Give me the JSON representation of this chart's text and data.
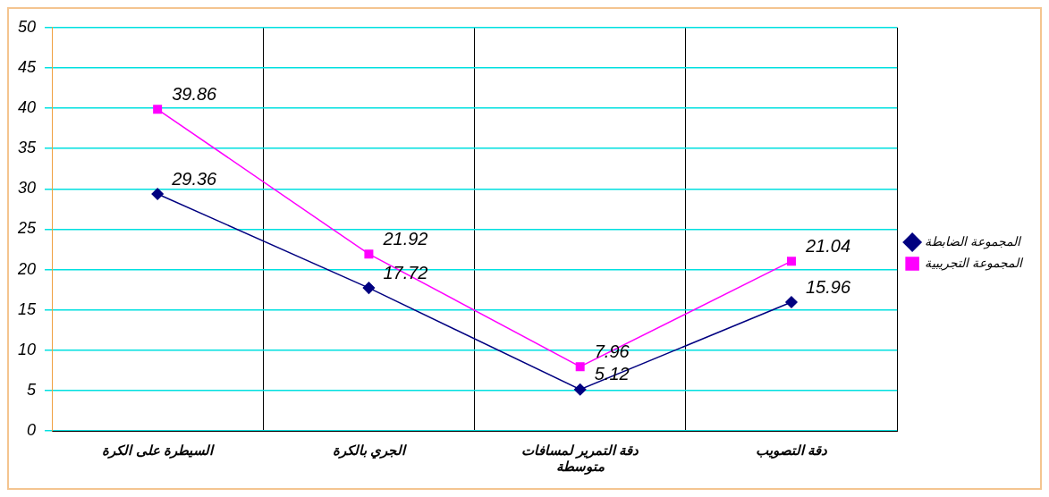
{
  "chart_data": {
    "type": "line",
    "categories": [
      "السيطرة على الكرة",
      "الجري بالكرة",
      "دقة التمرير لمسافات متوسطة",
      "دقة التصويب"
    ],
    "series": [
      {
        "name": "المجموعة الضابطة",
        "color": "#000080",
        "marker": "diamond",
        "values": [
          29.36,
          17.72,
          5.12,
          15.96
        ]
      },
      {
        "name": "المجموعة التجريبية",
        "color": "#ff00ff",
        "marker": "square",
        "values": [
          39.86,
          21.92,
          7.96,
          21.04
        ]
      }
    ],
    "ylim": [
      0,
      50
    ],
    "yticks": [
      0,
      5,
      10,
      15,
      20,
      25,
      30,
      35,
      40,
      45,
      50
    ],
    "grid": true,
    "legend": "right",
    "data_labels": true
  }
}
